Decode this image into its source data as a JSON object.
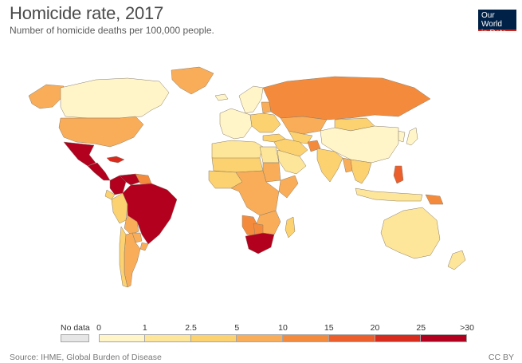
{
  "header": {
    "title": "Homicide rate, 2017",
    "subtitle": "Number of homicide deaths per 100,000 people.",
    "logo_line1": "Our World",
    "logo_line2": "in Data"
  },
  "legend": {
    "no_data_label": "No data",
    "no_data_color": "#e6e6e6",
    "bins": [
      {
        "from_label": "0",
        "color": "#fff5c8"
      },
      {
        "from_label": "1",
        "color": "#fde59a"
      },
      {
        "from_label": "2.5",
        "color": "#fcd16f"
      },
      {
        "from_label": "5",
        "color": "#f9ad58"
      },
      {
        "from_label": "10",
        "color": "#f48b3c"
      },
      {
        "from_label": "15",
        "color": "#ec5e2c"
      },
      {
        "from_label": "20",
        "color": "#d92a1e"
      },
      {
        "from_label": "25",
        "color": "#b3001e"
      }
    ],
    "last_label": ">30"
  },
  "regions": [
    {
      "name": "Canada",
      "color": "#fff5c8"
    },
    {
      "name": "Alaska",
      "color": "#f9ad58"
    },
    {
      "name": "Greenland",
      "color": "#f9ad58"
    },
    {
      "name": "United States",
      "color": "#f9ad58"
    },
    {
      "name": "Mexico",
      "color": "#b3001e"
    },
    {
      "name": "Central America",
      "color": "#b3001e"
    },
    {
      "name": "Caribbean",
      "color": "#d92a1e"
    },
    {
      "name": "Venezuela",
      "color": "#b3001e"
    },
    {
      "name": "Colombia",
      "color": "#b3001e"
    },
    {
      "name": "Guyana",
      "color": "#f48b3c"
    },
    {
      "name": "Ecuador",
      "color": "#fcd16f"
    },
    {
      "name": "Peru",
      "color": "#fcd16f"
    },
    {
      "name": "Brazil",
      "color": "#b3001e"
    },
    {
      "name": "Bolivia",
      "color": "#f9ad58"
    },
    {
      "name": "Paraguay",
      "color": "#f9ad58"
    },
    {
      "name": "Uruguay",
      "color": "#f9ad58"
    },
    {
      "name": "Argentina",
      "color": "#f9ad58"
    },
    {
      "name": "Chile",
      "color": "#fcd16f"
    },
    {
      "name": "Iceland",
      "color": "#fff5c8"
    },
    {
      "name": "Western Europe",
      "color": "#fff5c8"
    },
    {
      "name": "Scandinavia",
      "color": "#fff5c8"
    },
    {
      "name": "Baltics",
      "color": "#f9ad58"
    },
    {
      "name": "Eastern Europe",
      "color": "#fcd16f"
    },
    {
      "name": "Russia",
      "color": "#f48b3c"
    },
    {
      "name": "Kazakhstan",
      "color": "#f9ad58"
    },
    {
      "name": "Central Asia",
      "color": "#fcd16f"
    },
    {
      "name": "Mongolia",
      "color": "#fcd16f"
    },
    {
      "name": "China",
      "color": "#fff5c8"
    },
    {
      "name": "Turkey",
      "color": "#fcd16f"
    },
    {
      "name": "Middle East",
      "color": "#fcd16f"
    },
    {
      "name": "Saudi Arabia",
      "color": "#fde59a"
    },
    {
      "name": "Afghanistan",
      "color": "#f48b3c"
    },
    {
      "name": "India",
      "color": "#fcd16f"
    },
    {
      "name": "Southeast Asia",
      "color": "#fcd16f"
    },
    {
      "name": "Myanmar",
      "color": "#f9ad58"
    },
    {
      "name": "Philippines",
      "color": "#ec5e2c"
    },
    {
      "name": "Indonesia",
      "color": "#fde59a"
    },
    {
      "name": "Papua New Guinea",
      "color": "#f48b3c"
    },
    {
      "name": "Japan",
      "color": "#fff5c8"
    },
    {
      "name": "Korea",
      "color": "#fff5c8"
    },
    {
      "name": "Australia",
      "color": "#fde59a"
    },
    {
      "name": "New Zealand",
      "color": "#fde59a"
    },
    {
      "name": "North Africa",
      "color": "#fde59a"
    },
    {
      "name": "Egypt",
      "color": "#fde59a"
    },
    {
      "name": "Sahel",
      "color": "#fcd16f"
    },
    {
      "name": "Sudan",
      "color": "#f9ad58"
    },
    {
      "name": "West Africa",
      "color": "#fcd16f"
    },
    {
      "name": "Central Africa",
      "color": "#f9ad58"
    },
    {
      "name": "Horn of Africa",
      "color": "#f9ad58"
    },
    {
      "name": "Southern Africa",
      "color": "#f9ad58"
    },
    {
      "name": "Namibia",
      "color": "#f48b3c"
    },
    {
      "name": "Botswana",
      "color": "#f48b3c"
    },
    {
      "name": "South Africa",
      "color": "#b3001e"
    },
    {
      "name": "Madagascar",
      "color": "#fcd16f"
    }
  ],
  "footer": {
    "source": "Source: IHME, Global Burden of Disease",
    "license": "CC BY"
  }
}
